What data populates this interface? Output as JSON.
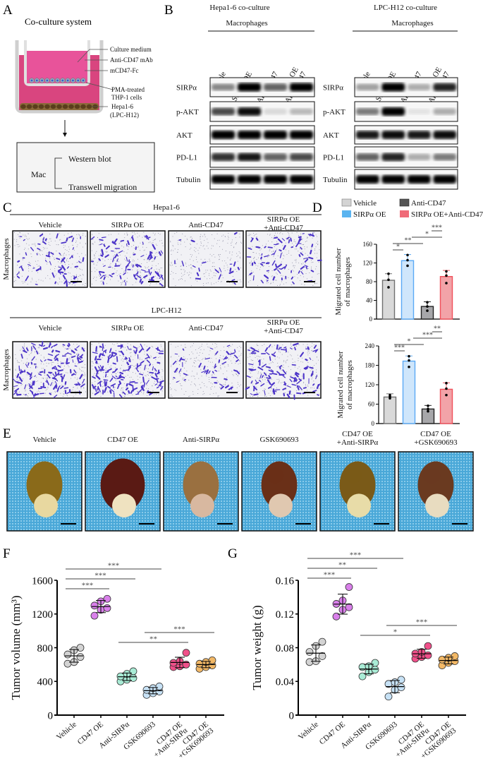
{
  "panel_labels": {
    "A": "A",
    "B": "B",
    "C": "C",
    "D": "D",
    "E": "E",
    "F": "F",
    "G": "G"
  },
  "panel_a": {
    "title": "Co-culture system",
    "labels": [
      "Culture medium",
      "Anti-CD47 mAb",
      "mCD47-Fc",
      "PMA-treated",
      "THP-1 cells",
      "Hepa1-6",
      "(LPC-H12)"
    ],
    "box": {
      "cell": "Mac",
      "top": "Western blot",
      "bottom": "Transwell migration"
    },
    "colors": {
      "medium_outer": "#d9457f",
      "medium_inner": "#e8539a",
      "tumor_cells": "#6b4a22"
    }
  },
  "panel_b": {
    "groups": [
      {
        "title": "Hepa1-6 co-culture",
        "subtitle": "Macrophages"
      },
      {
        "title": "LPC-H12 co-culture",
        "subtitle": "Macrophages"
      }
    ],
    "lanes": [
      [
        "Vehicle"
      ],
      [
        "SIRPα OE"
      ],
      [
        "Anti-CD47"
      ],
      [
        "SIRPα OE",
        "+Anti-CD47"
      ]
    ],
    "rows": [
      "SIRPα",
      "p-AKT",
      "AKT",
      "PD-L1",
      "Tubulin"
    ],
    "band_intensity": [
      [
        [
          0.45,
          1,
          0.6,
          1
        ],
        [
          0.7,
          0.95,
          0.12,
          0.25
        ],
        [
          1,
          1,
          1,
          1
        ],
        [
          0.8,
          0.9,
          0.6,
          0.7
        ],
        [
          1,
          1,
          1,
          1
        ]
      ],
      [
        [
          0.35,
          1,
          0.3,
          0.85
        ],
        [
          0.5,
          1,
          0.08,
          0.3
        ],
        [
          0.9,
          0.95,
          0.9,
          0.95
        ],
        [
          0.6,
          0.85,
          0.3,
          0.5
        ],
        [
          1,
          1,
          1,
          1
        ]
      ]
    ]
  },
  "panel_c": {
    "groups": [
      {
        "title": "Hepa1-6"
      },
      {
        "title": "LPC-H12"
      }
    ],
    "row_label": "Macrophages",
    "columns": [
      [
        "Vehicle"
      ],
      [
        "SIRPα OE"
      ],
      [
        "Anti-CD47"
      ],
      [
        "SIRPα OE",
        "+Anti-CD47"
      ]
    ],
    "stain_color": "#4b33c8"
  },
  "panel_e": {
    "columns": [
      [
        "Vehicle"
      ],
      [
        "CD47 OE"
      ],
      [
        "Anti-SIRPα"
      ],
      [
        "GSK690693"
      ],
      [
        "CD47 OE",
        "+Anti-SIRPα"
      ],
      [
        "CD47 OE",
        "+GSK690693"
      ]
    ],
    "background_color": "#4aa8d8"
  },
  "chart_data": [
    {
      "panel": "D-top",
      "type": "bar",
      "legend": [
        "Vehicle",
        "Anti-CD47",
        "SIRPα OE",
        "SIRPα OE+Anti-CD47"
      ],
      "categories": [
        "Vehicle",
        "SIRPα OE",
        "Anti-CD47",
        "SIRPα OE+Anti-CD47"
      ],
      "ylabel": [
        "Migrated cell number",
        "of macrophages"
      ],
      "ylim": [
        0,
        160
      ],
      "yticks": [
        "0",
        "40",
        "80",
        "120",
        "160"
      ],
      "values": [
        83,
        125,
        27,
        91
      ],
      "points": [
        [
          68,
          84,
          97
        ],
        [
          114,
          126,
          137
        ],
        [
          18,
          27,
          36
        ],
        [
          77,
          93,
          102
        ]
      ],
      "error_top": [
        97,
        138,
        37,
        104
      ],
      "significance": [
        {
          "from": 0,
          "to": 1,
          "label": "*"
        },
        {
          "from": 0,
          "to": 2,
          "label": "**"
        },
        {
          "from": 1,
          "to": 3,
          "label": "*"
        },
        {
          "from": 2,
          "to": 3,
          "label": "***"
        }
      ],
      "fill_colors": [
        "#d9d9d9",
        "#cfe6fb",
        "#a7a7aa",
        "#f2a3a8"
      ],
      "edge_colors": [
        "#707070",
        "#5aa9f5",
        "#222222",
        "#f0505a"
      ]
    },
    {
      "panel": "D-bottom",
      "type": "bar",
      "categories": [
        "Vehicle",
        "SIRPα OE",
        "Anti-CD47",
        "SIRPα OE+Anti-CD47"
      ],
      "ylabel": [
        "Migrated cell number",
        "of macrophages"
      ],
      "ylim": [
        0,
        240
      ],
      "yticks": [
        "0",
        "60",
        "120",
        "180",
        "240"
      ],
      "values": [
        82,
        193,
        45,
        106
      ],
      "points": [
        [
          78,
          83,
          88
        ],
        [
          175,
          195,
          208
        ],
        [
          38,
          45,
          55
        ],
        [
          88,
          108,
          125
        ]
      ],
      "error_top": [
        92,
        209,
        56,
        126
      ],
      "significance": [
        {
          "from": 0,
          "to": 1,
          "label": "***"
        },
        {
          "from": 0,
          "to": 2,
          "label": "*"
        },
        {
          "from": 1,
          "to": 3,
          "label": "***"
        },
        {
          "from": 2,
          "to": 3,
          "label": "**"
        }
      ],
      "fill_colors": [
        "#d9d9d9",
        "#cfe6fb",
        "#a7a7aa",
        "#f2a3a8"
      ],
      "edge_colors": [
        "#707070",
        "#5aa9f5",
        "#222222",
        "#f0505a"
      ]
    },
    {
      "panel": "F",
      "type": "scatter",
      "categories": [
        [
          "Vehicle"
        ],
        [
          "CD47 OE"
        ],
        [
          "Anti-SIRPα"
        ],
        [
          "GSK690693"
        ],
        [
          "CD47 OE",
          "+Anti-SIRPα"
        ],
        [
          "CD47 OE",
          "+GSK690693"
        ]
      ],
      "ylabel": "Tumor volume (mm³)",
      "ylim": [
        0,
        1600
      ],
      "yticks": [
        "0",
        "400",
        "800",
        "1200",
        "1600"
      ],
      "points": [
        [
          610,
          630,
          690,
          720,
          770,
          800
        ],
        [
          1180,
          1250,
          1270,
          1300,
          1350,
          1380
        ],
        [
          400,
          420,
          440,
          460,
          490,
          520
        ],
        [
          240,
          260,
          280,
          300,
          320,
          340
        ],
        [
          570,
          580,
          600,
          620,
          640,
          740
        ],
        [
          550,
          570,
          590,
          610,
          630,
          650
        ]
      ],
      "significance": [
        {
          "from": 0,
          "to": 1,
          "label": "***"
        },
        {
          "from": 0,
          "to": 2,
          "label": "***"
        },
        {
          "from": 0,
          "to": 3,
          "label": "***"
        },
        {
          "from": 2,
          "to": 4,
          "label": "**"
        },
        {
          "from": 3,
          "to": 5,
          "label": "***"
        }
      ],
      "colors": [
        "#d3d3d3",
        "#d980ea",
        "#a9ecd6",
        "#c7e2f6",
        "#f0508a",
        "#f2b866"
      ]
    },
    {
      "panel": "G",
      "type": "scatter",
      "categories": [
        [
          "Vehicle"
        ],
        [
          "CD47 OE"
        ],
        [
          "Anti-SIRPα"
        ],
        [
          "GSK690693"
        ],
        [
          "CD47 OE",
          "+Anti-SIRPα"
        ],
        [
          "CD47 OE",
          "+GSK690693"
        ]
      ],
      "ylabel": "Tumor weight (g)",
      "ylim": [
        0,
        0.16
      ],
      "yticks": [
        "0",
        "0.04",
        "0.08",
        "0.12",
        "0.16"
      ],
      "points": [
        [
          0.063,
          0.064,
          0.07,
          0.075,
          0.082,
          0.087
        ],
        [
          0.117,
          0.125,
          0.128,
          0.132,
          0.136,
          0.152
        ],
        [
          0.046,
          0.051,
          0.054,
          0.057,
          0.058,
          0.062
        ],
        [
          0.022,
          0.03,
          0.033,
          0.037,
          0.039,
          0.042
        ],
        [
          0.067,
          0.069,
          0.071,
          0.073,
          0.075,
          0.082
        ],
        [
          0.059,
          0.062,
          0.064,
          0.066,
          0.068,
          0.07
        ]
      ],
      "significance": [
        {
          "from": 0,
          "to": 1,
          "label": "***"
        },
        {
          "from": 0,
          "to": 2,
          "label": "**"
        },
        {
          "from": 0,
          "to": 3,
          "label": "***"
        },
        {
          "from": 2,
          "to": 4,
          "label": "*"
        },
        {
          "from": 3,
          "to": 5,
          "label": "***"
        }
      ],
      "colors": [
        "#d3d3d3",
        "#d980ea",
        "#a9ecd6",
        "#c7e2f6",
        "#f0508a",
        "#f2b866"
      ]
    }
  ]
}
